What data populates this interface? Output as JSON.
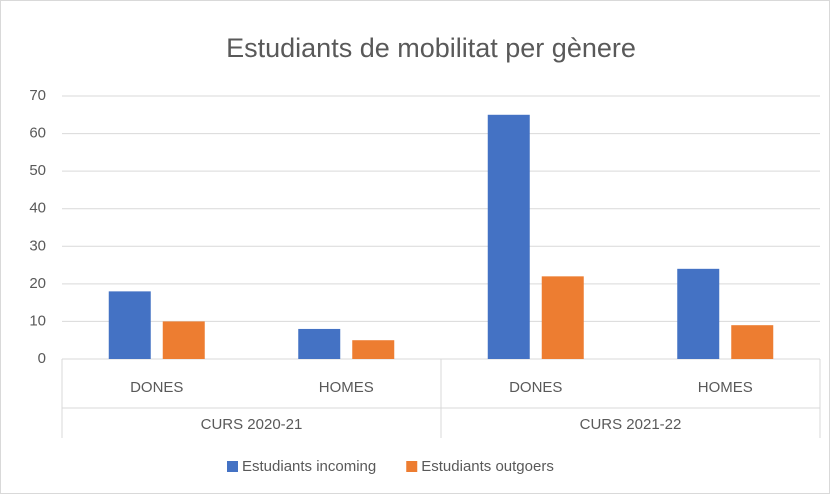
{
  "chart_data": {
    "type": "bar",
    "title": "Estudiants de mobilitat per gènere",
    "categories": [
      "DONES",
      "HOMES",
      "DONES",
      "HOMES"
    ],
    "groups": [
      "CURS 2020-21",
      "CURS 2021-22"
    ],
    "series": [
      {
        "name": "Estudiants incoming",
        "color": "#4472c4",
        "values": [
          18,
          8,
          65,
          24
        ]
      },
      {
        "name": "Estudiants outgoers",
        "color": "#ed7d31",
        "values": [
          10,
          5,
          22,
          9
        ]
      }
    ],
    "ylim": [
      0,
      70
    ],
    "yticks": [
      0,
      10,
      20,
      30,
      40,
      50,
      60,
      70
    ],
    "grid": true,
    "legend": "bottom"
  }
}
